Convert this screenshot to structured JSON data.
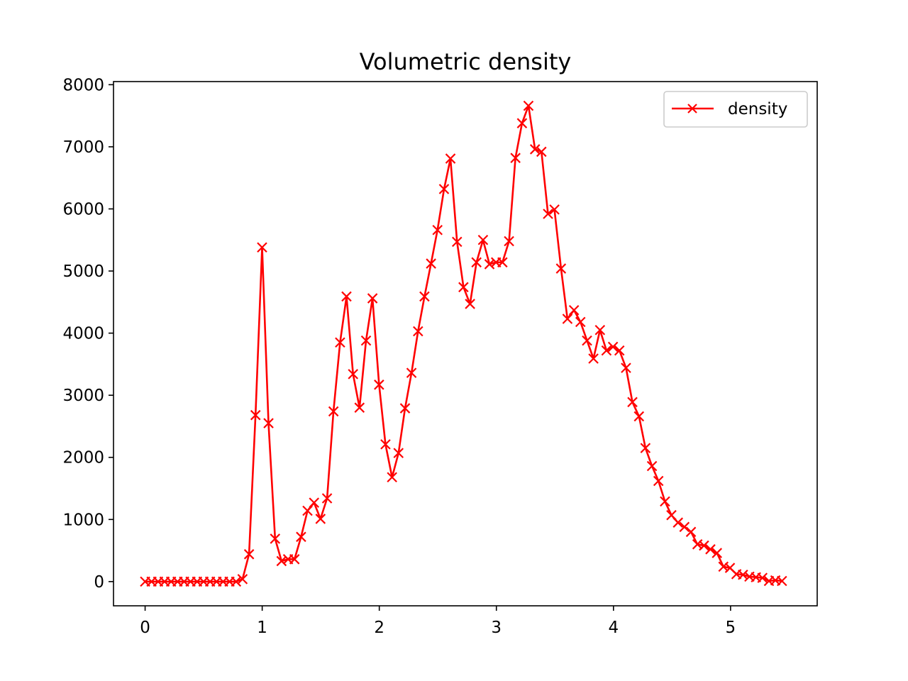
{
  "chart_data": {
    "type": "line",
    "title": "Volumetric density",
    "xlabel": "",
    "ylabel": "",
    "xlim": [
      -0.27,
      5.74
    ],
    "ylim": [
      -390,
      8050
    ],
    "xticks": [
      0,
      1,
      2,
      3,
      4,
      5
    ],
    "yticks": [
      0,
      1000,
      2000,
      3000,
      4000,
      5000,
      6000,
      7000,
      8000
    ],
    "grid": false,
    "legend": "upper-right",
    "series": [
      {
        "name": "density",
        "color": "#ff0000",
        "marker": "x",
        "x": [
          0.0,
          0.055,
          0.111,
          0.166,
          0.222,
          0.277,
          0.333,
          0.388,
          0.444,
          0.499,
          0.555,
          0.61,
          0.666,
          0.721,
          0.777,
          0.832,
          0.888,
          0.943,
          0.999,
          1.054,
          1.11,
          1.165,
          1.221,
          1.276,
          1.332,
          1.387,
          1.443,
          1.498,
          1.554,
          1.609,
          1.665,
          1.72,
          1.776,
          1.831,
          1.887,
          1.942,
          1.998,
          2.053,
          2.109,
          2.164,
          2.22,
          2.275,
          2.331,
          2.386,
          2.442,
          2.497,
          2.553,
          2.608,
          2.664,
          2.719,
          2.775,
          2.83,
          2.886,
          2.941,
          2.997,
          3.052,
          3.108,
          3.163,
          3.219,
          3.274,
          3.33,
          3.385,
          3.441,
          3.496,
          3.552,
          3.607,
          3.663,
          3.718,
          3.774,
          3.829,
          3.885,
          3.94,
          3.996,
          4.051,
          4.107,
          4.162,
          4.218,
          4.273,
          4.329,
          4.384,
          4.44,
          4.495,
          4.551,
          4.606,
          4.662,
          4.717,
          4.773,
          4.828,
          4.884,
          4.939,
          4.995,
          5.05,
          5.106,
          5.161,
          5.217,
          5.272,
          5.328,
          5.383,
          5.439
        ],
        "y": [
          0,
          0,
          0,
          0,
          0,
          0,
          0,
          0,
          0,
          0,
          0,
          0,
          0,
          0,
          0,
          40,
          440,
          2680,
          5380,
          2550,
          690,
          330,
          360,
          360,
          720,
          1140,
          1270,
          1010,
          1340,
          2740,
          3850,
          4590,
          3340,
          2800,
          3880,
          4560,
          3170,
          2210,
          1680,
          2070,
          2790,
          3360,
          4030,
          4590,
          5120,
          5660,
          6320,
          6810,
          5470,
          4740,
          4470,
          5140,
          5500,
          5110,
          5140,
          5140,
          5480,
          6820,
          7380,
          7660,
          6960,
          6920,
          5920,
          5990,
          5040,
          4230,
          4370,
          4180,
          3880,
          3590,
          4050,
          3720,
          3780,
          3720,
          3440,
          2890,
          2660,
          2150,
          1860,
          1620,
          1290,
          1070,
          950,
          880,
          800,
          600,
          580,
          520,
          460,
          240,
          220,
          120,
          110,
          80,
          70,
          60,
          10,
          20,
          10
        ]
      }
    ]
  }
}
